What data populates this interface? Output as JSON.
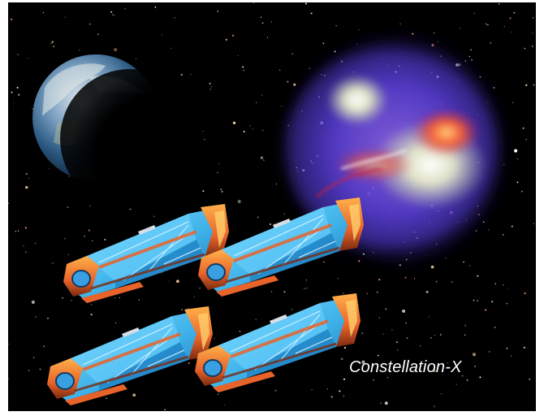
{
  "caption": "Constellation-X",
  "colors": {
    "space": "#000000",
    "ship_body": "#3fb3ea",
    "ship_trim": "#e8632a",
    "nebula_core": "#f3f5d6",
    "nebula_halo": "#6b4fe6",
    "nebula_hot": "#ff5a2a"
  },
  "icons": [
    "earth-planet",
    "galaxy-cluster",
    "spacecraft"
  ]
}
